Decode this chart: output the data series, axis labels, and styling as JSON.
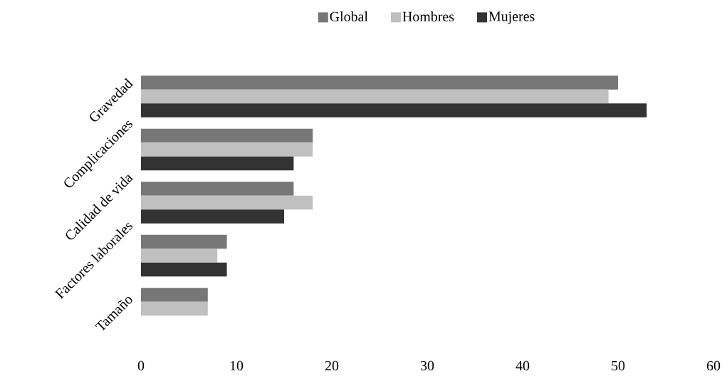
{
  "chart_data": {
    "type": "bar",
    "orientation": "horizontal",
    "categories": [
      "Gravedad",
      "Complicaciones",
      "Calidad de vida",
      "Factores laborales",
      "Tamaño"
    ],
    "series": [
      {
        "name": "Global",
        "color": "#777777",
        "values": [
          50,
          18,
          16,
          9,
          7
        ]
      },
      {
        "name": "Hombres",
        "color": "#c0c0c0",
        "values": [
          49,
          18,
          18,
          8,
          7
        ]
      },
      {
        "name": "Mujeres",
        "color": "#333333",
        "values": [
          53,
          16,
          15,
          9,
          null
        ]
      }
    ],
    "xlim": [
      0,
      60
    ],
    "xticks": [
      0,
      10,
      20,
      30,
      40,
      50,
      60
    ],
    "legend": "top"
  }
}
